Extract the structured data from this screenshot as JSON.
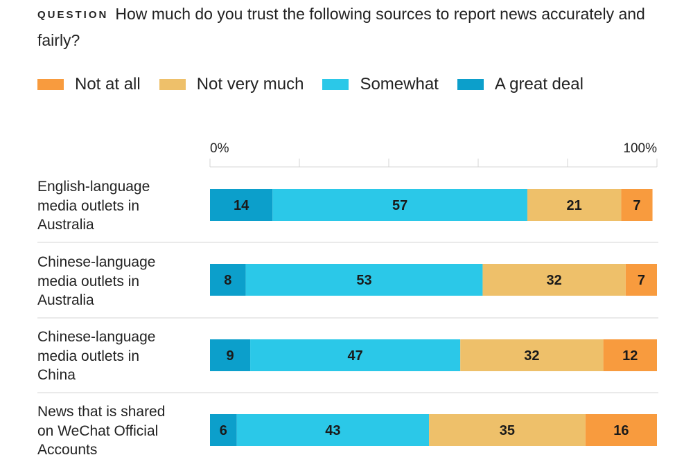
{
  "question": {
    "label": "QUESTION",
    "text": "How much do you trust the following sources to report news accurately and fairly?"
  },
  "colors": {
    "not_at_all": "#F89B3E",
    "not_very_much": "#EEC06A",
    "somewhat": "#2BC8E8",
    "a_great_deal": "#0C9FCB"
  },
  "chart_data": {
    "type": "bar",
    "orientation": "horizontal",
    "stacked": true,
    "xlim": [
      0,
      100
    ],
    "tick_labels": [
      "0%",
      "100%"
    ],
    "legend_placement": "top",
    "legend": [
      {
        "key": "not_at_all",
        "label": "Not at all"
      },
      {
        "key": "not_very_much",
        "label": "Not very much"
      },
      {
        "key": "somewhat",
        "label": "Somewhat"
      },
      {
        "key": "a_great_deal",
        "label": "A great deal"
      }
    ],
    "categories": [
      [
        "English-language",
        "media outlets in",
        "Australia"
      ],
      [
        "Chinese-language",
        "media outlets in",
        "Australia"
      ],
      [
        "Chinese-language",
        "media outlets in",
        "China"
      ],
      [
        "News that is shared",
        "on WeChat Official",
        "Accounts"
      ]
    ],
    "series": [
      {
        "key": "a_great_deal",
        "name": "A great deal",
        "values": [
          14,
          8,
          9,
          6
        ]
      },
      {
        "key": "somewhat",
        "name": "Somewhat",
        "values": [
          57,
          53,
          47,
          43
        ]
      },
      {
        "key": "not_very_much",
        "name": "Not very much",
        "values": [
          21,
          32,
          32,
          35
        ]
      },
      {
        "key": "not_at_all",
        "name": "Not at all",
        "values": [
          7,
          7,
          12,
          16
        ]
      }
    ]
  }
}
